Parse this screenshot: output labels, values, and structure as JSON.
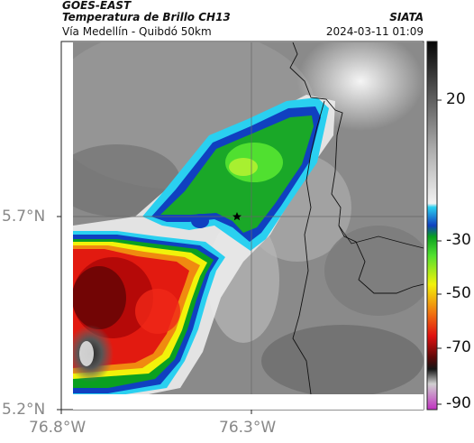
{
  "header": {
    "source": "GOES-EAST",
    "product": "Temperatura de Brillo CH13",
    "organization": "SIATA",
    "region": "Vía Medellín - Quibdó 50km",
    "datetime": "2024-03-11 01:09"
  },
  "axes": {
    "latitude_ticks": [
      "5.7°N",
      "5.2°N"
    ],
    "longitude_ticks": [
      "76.8°W",
      "76.3°W"
    ]
  },
  "colorbar": {
    "ticks": [
      "20",
      "-30",
      "-50",
      "-70",
      "-90"
    ]
  },
  "marker": {
    "icon": "star-icon"
  }
}
